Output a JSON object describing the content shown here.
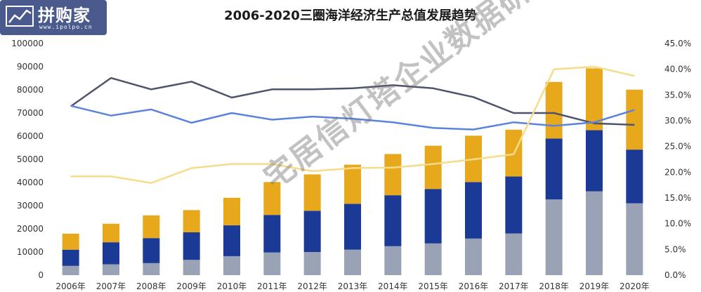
{
  "logo": {
    "text": "拼购家",
    "url": "www.ipolpo.cn"
  },
  "watermark": "宅居信灯塔企业数据研究中心版",
  "chart_data": {
    "type": "bar",
    "title": "2006-2020三圈海洋经济生产总值发展趋势",
    "categories": [
      "2006年",
      "2007年",
      "2008年",
      "2009年",
      "2010年",
      "2011年",
      "2012年",
      "2013年",
      "2014年",
      "2015年",
      "2016年",
      "2017年",
      "2018年",
      "2019年",
      "2020年"
    ],
    "y_left": {
      "min": 0,
      "max": 100000,
      "step": 10000,
      "ticks": [
        "0",
        "10000",
        "20000",
        "30000",
        "40000",
        "50000",
        "60000",
        "70000",
        "80000",
        "90000",
        "100000"
      ]
    },
    "y_right": {
      "min": 0,
      "max": 45,
      "step": 5,
      "ticks": [
        "0.0%",
        "5.0%",
        "10.0%",
        "15.0%",
        "20.0%",
        "25.0%",
        "30.0%",
        "35.0%",
        "40.0%",
        "45.0%"
      ]
    },
    "bar_series": [
      {
        "color": "#9aa2b6",
        "values": [
          4000,
          4700,
          5200,
          6600,
          8200,
          9800,
          10000,
          11000,
          12500,
          13700,
          15800,
          18000,
          32700,
          36200,
          31000
        ]
      },
      {
        "color": "#1a3a96",
        "values": [
          7000,
          9500,
          10800,
          11900,
          13300,
          16200,
          17800,
          19800,
          22000,
          23500,
          24400,
          24600,
          26300,
          26400,
          23200
        ]
      },
      {
        "color": "#e8a81c",
        "values": [
          6900,
          8000,
          9800,
          9600,
          11900,
          14200,
          15700,
          16900,
          17800,
          18700,
          20000,
          20200,
          24400,
          26700,
          25900
        ]
      }
    ],
    "line_series": [
      {
        "color": "#4e546c",
        "axis": "right",
        "values": [
          32.8,
          38.3,
          36.1,
          37.6,
          34.5,
          36.1,
          36.1,
          36.3,
          36.9,
          36.3,
          34.6,
          31.5,
          31.5,
          29.5,
          29.2
        ]
      },
      {
        "color": "#5b83dc",
        "axis": "right",
        "values": [
          32.9,
          31.0,
          32.2,
          29.6,
          31.5,
          30.2,
          30.8,
          30.4,
          29.7,
          28.6,
          28.3,
          29.7,
          29.0,
          29.7,
          32.1
        ]
      },
      {
        "color": "#f6dc8a",
        "axis": "right",
        "values": [
          19.2,
          19.2,
          17.9,
          20.8,
          21.6,
          21.6,
          20.2,
          20.8,
          20.9,
          21.6,
          22.5,
          23.5,
          40.0,
          40.5,
          38.7
        ]
      }
    ],
    "legend": "none",
    "grid": false
  }
}
